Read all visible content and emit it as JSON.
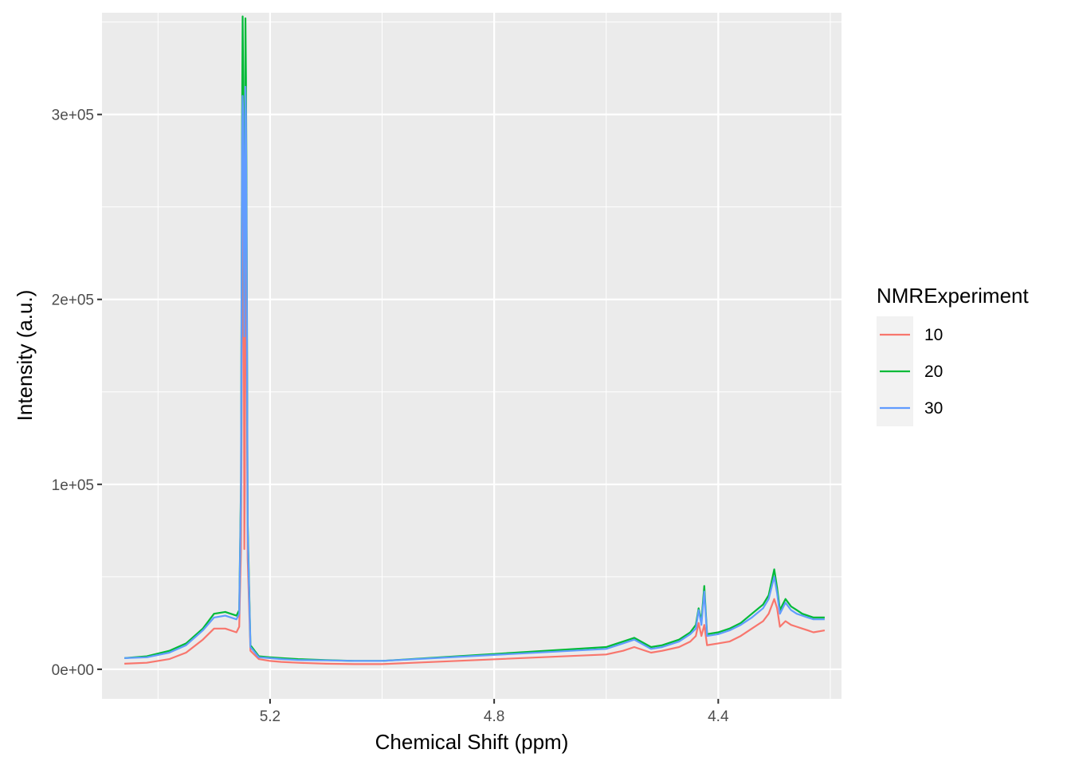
{
  "chart_data": {
    "type": "line",
    "title": "",
    "xlabel": "Chemical Shift (ppm)",
    "ylabel": "Intensity (a.u.)",
    "x_reversed": true,
    "xlim": [
      5.5,
      4.18
    ],
    "ylim": [
      -16000,
      355000
    ],
    "x_ticks": [
      5.2,
      4.8,
      4.4
    ],
    "x_tick_labels": [
      "5.2",
      "4.8",
      "4.4"
    ],
    "y_ticks": [
      0,
      100000,
      200000,
      300000
    ],
    "y_tick_labels": [
      "0e+00",
      "1e+05",
      "2e+05",
      "3e+05"
    ],
    "grid": true,
    "legend": {
      "title": "NMRExperiment",
      "position": "right"
    },
    "series": [
      {
        "name": "10",
        "color": "#F8766D",
        "x": [
          5.46,
          5.42,
          5.38,
          5.35,
          5.32,
          5.3,
          5.28,
          5.26,
          5.255,
          5.252,
          5.25,
          5.249,
          5.248,
          5.247,
          5.246,
          5.245,
          5.244,
          5.243,
          5.242,
          5.24,
          5.235,
          5.22,
          5.2,
          5.18,
          5.15,
          5.1,
          5.05,
          5.0,
          4.6,
          4.57,
          4.55,
          4.52,
          4.5,
          4.47,
          4.45,
          4.44,
          4.435,
          4.43,
          4.425,
          4.42,
          4.4,
          4.38,
          4.36,
          4.34,
          4.32,
          4.31,
          4.3,
          4.295,
          4.29,
          4.28,
          4.27,
          4.26,
          4.25,
          4.24,
          4.23,
          4.21
        ],
        "y": [
          3000,
          3500,
          5500,
          9000,
          16000,
          22000,
          22000,
          20000,
          23000,
          65000,
          180000,
          260000,
          300000,
          200000,
          65000,
          100000,
          240000,
          280000,
          200000,
          60000,
          10000,
          5500,
          4500,
          4000,
          3500,
          3000,
          2800,
          2800,
          8000,
          10000,
          12000,
          9000,
          10000,
          12000,
          15000,
          18000,
          25000,
          18000,
          24000,
          13000,
          14000,
          15000,
          18000,
          22000,
          26000,
          30000,
          38000,
          33000,
          23000,
          26000,
          24000,
          23000,
          22000,
          21000,
          20000,
          21000
        ]
      },
      {
        "name": "20",
        "color": "#00BA38",
        "x": [
          5.46,
          5.42,
          5.38,
          5.35,
          5.32,
          5.3,
          5.28,
          5.26,
          5.255,
          5.252,
          5.25,
          5.249,
          5.248,
          5.247,
          5.246,
          5.245,
          5.244,
          5.243,
          5.242,
          5.24,
          5.235,
          5.22,
          5.2,
          5.18,
          5.15,
          5.1,
          5.05,
          5.0,
          4.6,
          4.57,
          4.55,
          4.52,
          4.5,
          4.47,
          4.45,
          4.44,
          4.435,
          4.43,
          4.425,
          4.42,
          4.4,
          4.38,
          4.36,
          4.34,
          4.32,
          4.31,
          4.3,
          4.295,
          4.29,
          4.28,
          4.27,
          4.26,
          4.25,
          4.24,
          4.23,
          4.21
        ],
        "y": [
          6000,
          7000,
          10000,
          14000,
          22000,
          30000,
          31000,
          29000,
          32000,
          100000,
          300000,
          353000,
          320000,
          250000,
          200000,
          240000,
          352000,
          320000,
          260000,
          80000,
          13000,
          7000,
          6500,
          6000,
          5500,
          5000,
          4500,
          4500,
          12000,
          15000,
          17000,
          12000,
          13000,
          16000,
          20000,
          24000,
          33000,
          26000,
          45000,
          19000,
          20000,
          22000,
          25000,
          30000,
          35000,
          40000,
          54000,
          44000,
          32000,
          38000,
          34000,
          32000,
          30000,
          29000,
          28000,
          28000
        ]
      },
      {
        "name": "30",
        "color": "#619CFF",
        "x": [
          5.46,
          5.42,
          5.38,
          5.35,
          5.32,
          5.3,
          5.28,
          5.26,
          5.255,
          5.252,
          5.25,
          5.249,
          5.248,
          5.247,
          5.246,
          5.245,
          5.244,
          5.243,
          5.242,
          5.24,
          5.235,
          5.22,
          5.2,
          5.18,
          5.15,
          5.1,
          5.05,
          5.0,
          4.6,
          4.57,
          4.55,
          4.52,
          4.5,
          4.47,
          4.45,
          4.44,
          4.435,
          4.43,
          4.425,
          4.42,
          4.4,
          4.38,
          4.36,
          4.34,
          4.32,
          4.31,
          4.3,
          4.295,
          4.29,
          4.28,
          4.27,
          4.26,
          4.25,
          4.24,
          4.23,
          4.21
        ],
        "y": [
          6000,
          6500,
          9000,
          13000,
          21000,
          28000,
          29000,
          27000,
          30000,
          95000,
          280000,
          310000,
          300000,
          240000,
          180000,
          230000,
          315000,
          300000,
          240000,
          75000,
          12000,
          6500,
          6000,
          5500,
          5000,
          4800,
          4500,
          4500,
          11000,
          14000,
          16000,
          11000,
          12000,
          15000,
          19000,
          22000,
          32000,
          24000,
          42000,
          18000,
          19000,
          21000,
          24000,
          28000,
          33000,
          38000,
          50000,
          41000,
          30000,
          36000,
          32000,
          30000,
          29000,
          28000,
          27000,
          27000
        ]
      }
    ]
  }
}
